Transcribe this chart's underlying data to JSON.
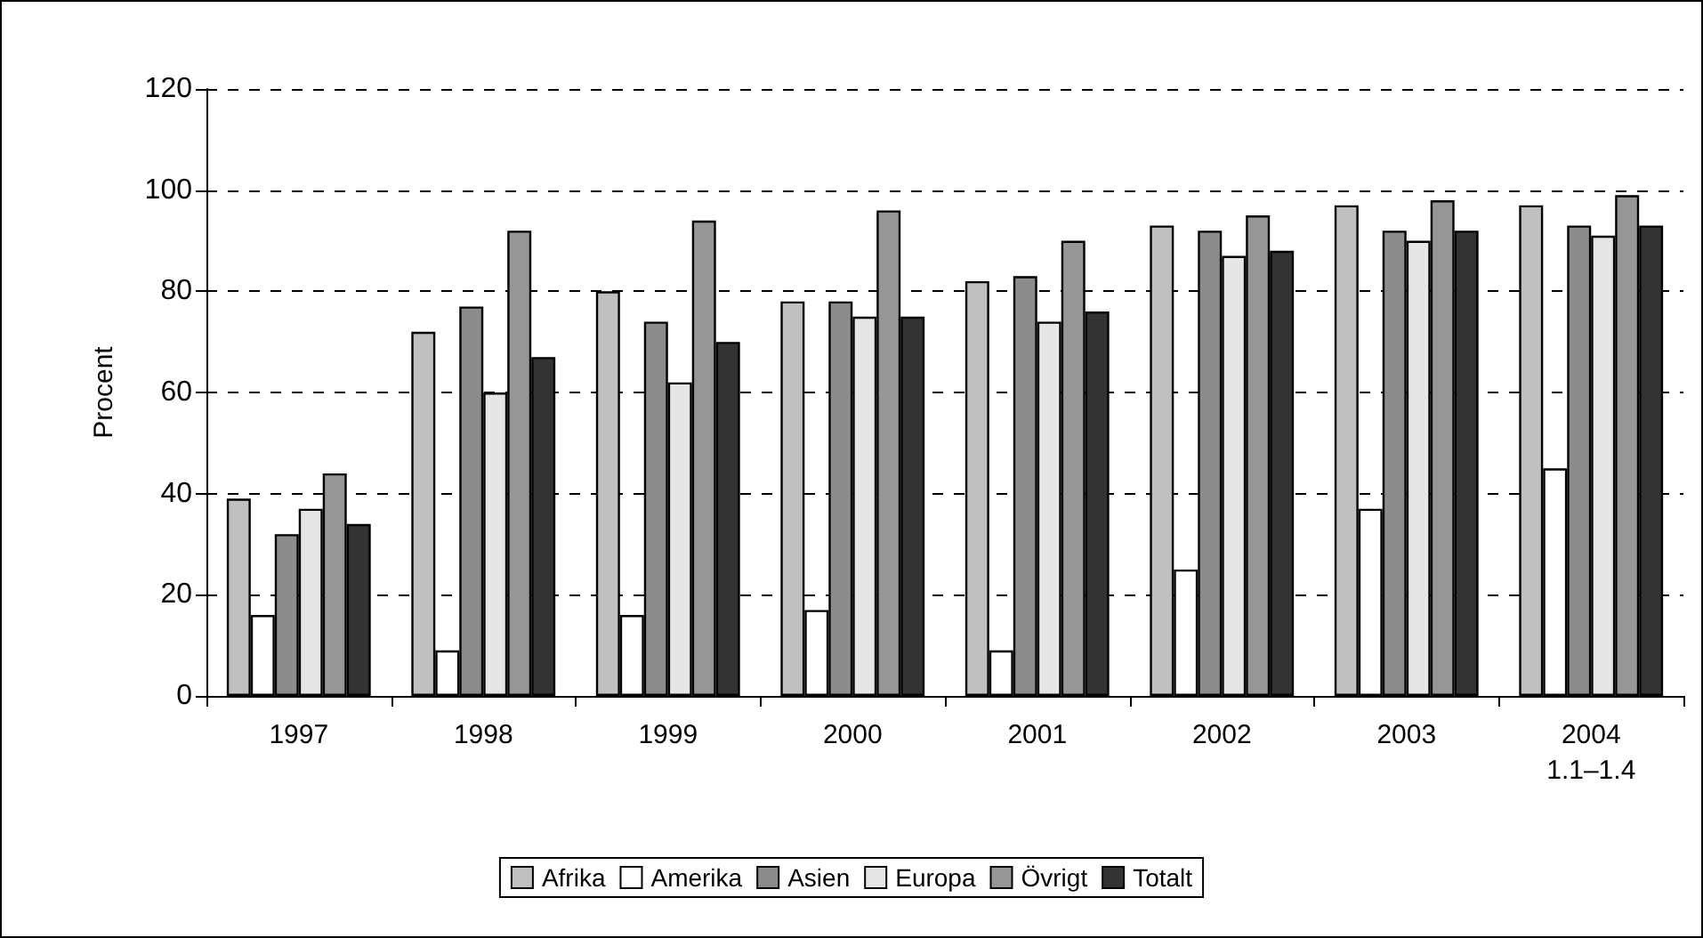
{
  "chart_data": {
    "type": "bar",
    "ylabel": "Procent",
    "categories": [
      "1997",
      "1998",
      "1999",
      "2000",
      "2001",
      "2002",
      "2003",
      "2004\n1.1–1.4"
    ],
    "series": [
      {
        "name": "Afrika",
        "color": "#c0c0c0",
        "values": [
          39,
          72,
          80,
          78,
          82,
          93,
          97,
          97
        ]
      },
      {
        "name": "Amerika",
        "color": "#ffffff",
        "values": [
          16,
          9,
          16,
          17,
          9,
          25,
          37,
          45
        ]
      },
      {
        "name": "Asien",
        "color": "#8c8c8c",
        "values": [
          32,
          77,
          74,
          78,
          83,
          92,
          92,
          93
        ]
      },
      {
        "name": "Europa",
        "color": "#e6e6e6",
        "values": [
          37,
          60,
          62,
          75,
          74,
          87,
          90,
          91
        ]
      },
      {
        "name": "Övrigt",
        "color": "#969696",
        "values": [
          44,
          92,
          94,
          96,
          90,
          95,
          98,
          99
        ]
      },
      {
        "name": "Totalt",
        "color": "#333333",
        "values": [
          34,
          67,
          70,
          75,
          76,
          88,
          92,
          93
        ]
      }
    ],
    "ylim": [
      0,
      120
    ],
    "yticks": [
      0,
      20,
      40,
      60,
      80,
      100,
      120
    ],
    "grid": "y",
    "legend": "bottom"
  }
}
